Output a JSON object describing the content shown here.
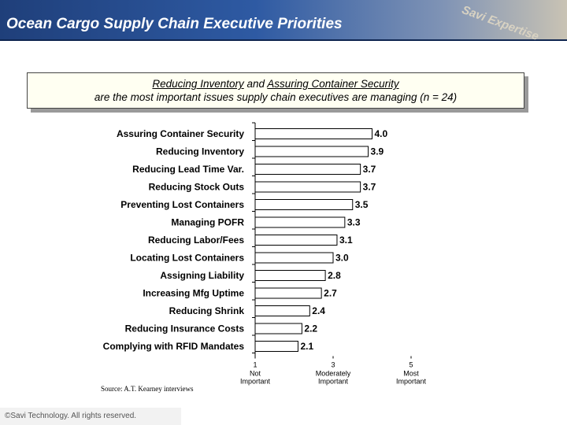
{
  "header": {
    "title": "Ocean Cargo Supply Chain Executive Priorities",
    "logo_text": "Savi Expertise"
  },
  "callout": {
    "line1_a": "Reducing Inventory",
    "line1_b": " and ",
    "line1_c": "Assuring Container Security",
    "line2": "are the most important issues supply chain executives are managing (n = 24)"
  },
  "chart_data": {
    "type": "bar",
    "orientation": "horizontal",
    "categories": [
      "Assuring Container Security",
      "Reducing Inventory",
      "Reducing Lead Time Var.",
      "Reducing Stock Outs",
      "Preventing Lost Containers",
      "Managing POFR",
      "Reducing Labor/Fees",
      "Locating Lost Containers",
      "Assigning Liability",
      "Increasing Mfg Uptime",
      "Reducing Shrink",
      "Reducing Insurance Costs",
      "Complying with RFID Mandates"
    ],
    "values": [
      4.0,
      3.9,
      3.7,
      3.7,
      3.5,
      3.3,
      3.1,
      3.0,
      2.8,
      2.7,
      2.4,
      2.2,
      2.1
    ],
    "value_labels": [
      "4.0",
      "3.9",
      "3.7",
      "3.7",
      "3.5",
      "3.3",
      "3.1",
      "3.0",
      "2.8",
      "2.7",
      "2.4",
      "2.2",
      "2.1"
    ],
    "xlim": [
      1,
      5
    ],
    "ticks": [
      {
        "value": 1,
        "num": "1",
        "lines": [
          "Not",
          "Important"
        ]
      },
      {
        "value": 3,
        "num": "3",
        "lines": [
          "Moderately",
          "Important"
        ]
      },
      {
        "value": 5,
        "num": "5",
        "lines": [
          "Most",
          "Important"
        ]
      }
    ],
    "bar_color": "#ffffff",
    "edge_color": "#000000"
  },
  "source": "Source: A.T. Kearney interviews",
  "footer": {
    "copyright": "©Savi Technology. All rights reserved."
  }
}
